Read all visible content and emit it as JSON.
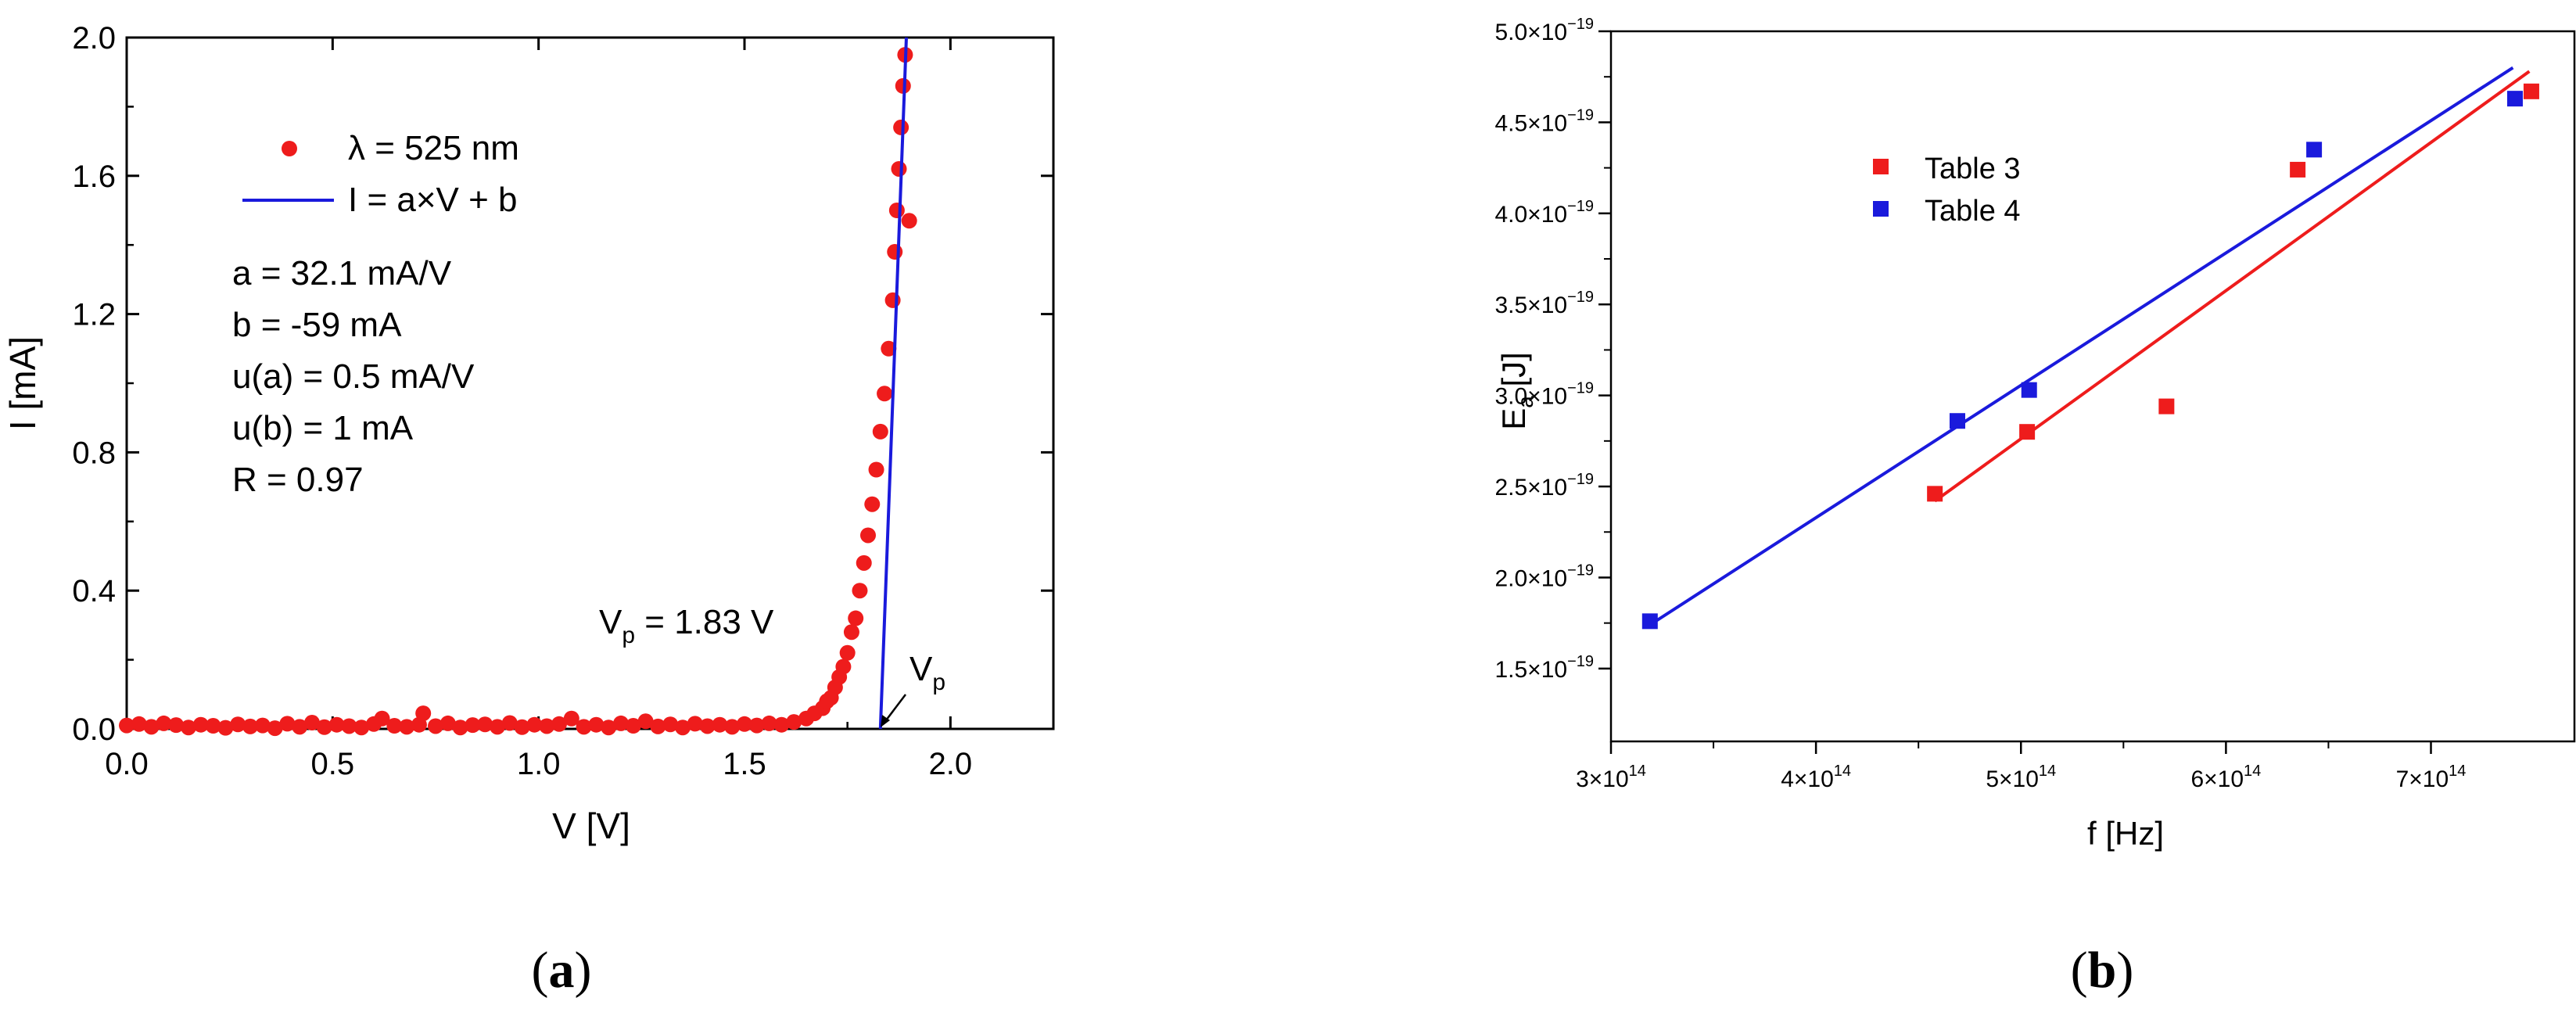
{
  "captions": {
    "a": "a",
    "b": "b"
  },
  "chart_data": [
    {
      "id": "a",
      "type": "scatter",
      "xlabel": "V [V]",
      "ylabel": "I [mA]",
      "xlim": [
        0,
        2.25
      ],
      "ylim": [
        0,
        2.0
      ],
      "xticks": [
        0.0,
        0.5,
        1.0,
        1.5,
        2.0
      ],
      "xtick_labels": [
        "0.0",
        "0.5",
        "1.0",
        "1.5",
        "2.0"
      ],
      "yticks": [
        0.0,
        0.4,
        0.8,
        1.2,
        1.6,
        2.0
      ],
      "ytick_labels": [
        "0.0",
        "0.4",
        "0.8",
        "1.2",
        "1.6",
        "2.0"
      ],
      "legend": {
        "position": "top-left",
        "entries": [
          "λ = 525 nm",
          "I = a×V + b"
        ]
      },
      "colors": {
        "data": "#ee1c1c",
        "fit": "#1a1adc"
      },
      "series": [
        {
          "name": "λ = 525 nm",
          "marker": "circle",
          "points": [
            [
              0.0,
              0.01
            ],
            [
              0.03,
              0.014
            ],
            [
              0.06,
              0.006
            ],
            [
              0.09,
              0.016
            ],
            [
              0.12,
              0.011
            ],
            [
              0.15,
              0.004
            ],
            [
              0.18,
              0.012
            ],
            [
              0.21,
              0.009
            ],
            [
              0.24,
              0.003
            ],
            [
              0.27,
              0.013
            ],
            [
              0.3,
              0.007
            ],
            [
              0.33,
              0.01
            ],
            [
              0.36,
              0.002
            ],
            [
              0.39,
              0.015
            ],
            [
              0.42,
              0.006
            ],
            [
              0.45,
              0.018
            ],
            [
              0.48,
              0.005
            ],
            [
              0.51,
              0.012
            ],
            [
              0.54,
              0.008
            ],
            [
              0.57,
              0.004
            ],
            [
              0.6,
              0.014
            ],
            [
              0.62,
              0.03
            ],
            [
              0.65,
              0.009
            ],
            [
              0.68,
              0.006
            ],
            [
              0.71,
              0.012
            ],
            [
              0.72,
              0.045
            ],
            [
              0.75,
              0.008
            ],
            [
              0.78,
              0.016
            ],
            [
              0.81,
              0.004
            ],
            [
              0.84,
              0.011
            ],
            [
              0.87,
              0.013
            ],
            [
              0.9,
              0.006
            ],
            [
              0.93,
              0.017
            ],
            [
              0.96,
              0.005
            ],
            [
              0.99,
              0.012
            ],
            [
              1.02,
              0.008
            ],
            [
              1.05,
              0.014
            ],
            [
              1.08,
              0.03
            ],
            [
              1.11,
              0.006
            ],
            [
              1.14,
              0.012
            ],
            [
              1.17,
              0.004
            ],
            [
              1.2,
              0.016
            ],
            [
              1.23,
              0.009
            ],
            [
              1.26,
              0.022
            ],
            [
              1.29,
              0.007
            ],
            [
              1.32,
              0.013
            ],
            [
              1.35,
              0.004
            ],
            [
              1.38,
              0.015
            ],
            [
              1.41,
              0.008
            ],
            [
              1.44,
              0.012
            ],
            [
              1.47,
              0.006
            ],
            [
              1.5,
              0.014
            ],
            [
              1.53,
              0.01
            ],
            [
              1.56,
              0.016
            ],
            [
              1.59,
              0.012
            ],
            [
              1.62,
              0.02
            ],
            [
              1.65,
              0.03
            ],
            [
              1.67,
              0.045
            ],
            [
              1.69,
              0.06
            ],
            [
              1.7,
              0.08
            ],
            [
              1.71,
              0.09
            ],
            [
              1.72,
              0.12
            ],
            [
              1.73,
              0.15
            ],
            [
              1.74,
              0.18
            ],
            [
              1.75,
              0.22
            ],
            [
              1.76,
              0.28
            ],
            [
              1.77,
              0.32
            ],
            [
              1.78,
              0.4
            ],
            [
              1.79,
              0.48
            ],
            [
              1.8,
              0.56
            ],
            [
              1.81,
              0.65
            ],
            [
              1.82,
              0.75
            ],
            [
              1.83,
              0.86
            ],
            [
              1.84,
              0.97
            ],
            [
              1.85,
              1.1
            ],
            [
              1.86,
              1.24
            ],
            [
              1.865,
              1.38
            ],
            [
              1.87,
              1.5
            ],
            [
              1.875,
              1.62
            ],
            [
              1.88,
              1.74
            ],
            [
              1.885,
              1.86
            ],
            [
              1.89,
              1.95
            ],
            [
              1.9,
              1.47
            ]
          ]
        },
        {
          "name": "I = a×V + b",
          "type": "line",
          "points": [
            [
              1.83,
              0.0
            ],
            [
              1.893,
              2.0
            ]
          ]
        }
      ],
      "annotations": [
        {
          "id": "params",
          "lines": [
            "a = 32.1 mA/V",
            "b = -59 mA",
            "u(a) = 0.5 mA/V",
            "u(b) = 1 mA",
            "R = 0.97"
          ]
        },
        {
          "id": "vp_value",
          "main": "V",
          "sub": "p",
          "rest": " = 1.83 V"
        },
        {
          "id": "vp_arrow",
          "main": "V",
          "sub": "p",
          "x": 1.83
        }
      ]
    },
    {
      "id": "b",
      "type": "scatter",
      "xlabel": "f [Hz]",
      "ylabel_main": "E",
      "ylabel_sub": "a",
      "ylabel_rest": " [J]",
      "xlim": [
        300000000000000.0,
        770000000000000.0
      ],
      "ylim": [
        1.1e-19,
        5e-19
      ],
      "xticks": [
        300000000000000.0,
        400000000000000.0,
        500000000000000.0,
        600000000000000.0,
        700000000000000.0
      ],
      "xtick_labels": [
        {
          "mant": "3×10",
          "exp": "14"
        },
        {
          "mant": "4×10",
          "exp": "14"
        },
        {
          "mant": "5×10",
          "exp": "14"
        },
        {
          "mant": "6×10",
          "exp": "14"
        },
        {
          "mant": "7×10",
          "exp": "14"
        }
      ],
      "yticks": [
        1.5e-19,
        2e-19,
        2.5e-19,
        3e-19,
        3.5e-19,
        4e-19,
        4.5e-19,
        5e-19
      ],
      "ytick_labels": [
        {
          "mant": "1.5×10",
          "exp": "−19"
        },
        {
          "mant": "2.0×10",
          "exp": "−19"
        },
        {
          "mant": "2.5×10",
          "exp": "−19"
        },
        {
          "mant": "3.0×10",
          "exp": "−19"
        },
        {
          "mant": "3.5×10",
          "exp": "−19"
        },
        {
          "mant": "4.0×10",
          "exp": "−19"
        },
        {
          "mant": "4.5×10",
          "exp": "−19"
        },
        {
          "mant": "5.0×10",
          "exp": "−19"
        }
      ],
      "legend": {
        "position": "top-left",
        "entries": [
          "Table 3",
          "Table 4"
        ]
      },
      "series": [
        {
          "name": "Table 3",
          "color": "#ee1c1c",
          "marker": "square",
          "points": [
            [
              458000000000000.0,
              2.46e-19
            ],
            [
              503000000000000.0,
              2.8e-19
            ],
            [
              571000000000000.0,
              2.94e-19
            ],
            [
              635000000000000.0,
              4.24e-19
            ],
            [
              749000000000000.0,
              4.67e-19
            ]
          ],
          "fit": [
            [
              458000000000000.0,
              2.42e-19
            ],
            [
              748000000000000.0,
              4.78e-19
            ]
          ]
        },
        {
          "name": "Table 4",
          "color": "#1a1adc",
          "marker": "square",
          "points": [
            [
              319000000000000.0,
              1.76e-19
            ],
            [
              469000000000000.0,
              2.86e-19
            ],
            [
              504000000000000.0,
              3.03e-19
            ],
            [
              643000000000000.0,
              4.35e-19
            ],
            [
              741000000000000.0,
              4.63e-19
            ]
          ],
          "fit": [
            [
              319000000000000.0,
              1.74e-19
            ],
            [
              740000000000000.0,
              4.8e-19
            ]
          ]
        }
      ]
    }
  ]
}
